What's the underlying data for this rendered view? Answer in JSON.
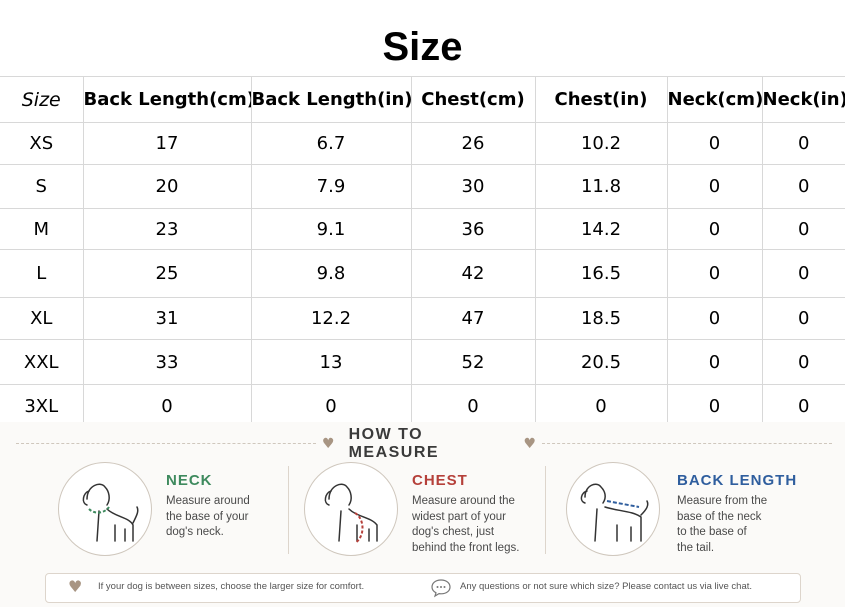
{
  "title": "Size",
  "table": {
    "headers": [
      "Size",
      "Back Length(cm)",
      "Back Length(in)",
      "Chest(cm)",
      "Chest(in)",
      "Neck(cm)",
      "Neck(in)"
    ],
    "rows": [
      [
        "XS",
        "17",
        "6.7",
        "26",
        "10.2",
        "0",
        "0"
      ],
      [
        "S",
        "20",
        "7.9",
        "30",
        "11.8",
        "0",
        "0"
      ],
      [
        "M",
        "23",
        "9.1",
        "36",
        "14.2",
        "0",
        "0"
      ],
      [
        "L",
        "25",
        "9.8",
        "42",
        "16.5",
        "0",
        "0"
      ],
      [
        "XL",
        "31",
        "12.2",
        "47",
        "18.5",
        "0",
        "0"
      ],
      [
        "XXL",
        "33",
        "13",
        "52",
        "20.5",
        "0",
        "0"
      ],
      [
        "3XL",
        "0",
        "0",
        "0",
        "0",
        "0",
        "0"
      ]
    ]
  },
  "how_to_measure": {
    "heading": "HOW TO MEASURE",
    "items": [
      {
        "title": "NECK",
        "color": "#3e8a5e",
        "desc": [
          "Measure around",
          "the base of your",
          "dog's neck."
        ],
        "icon": "dog-neck-icon"
      },
      {
        "title": "CHEST",
        "color": "#b5403a",
        "desc": [
          "Measure around the",
          "widest part of your",
          "dog's chest, just",
          "behind the front legs."
        ],
        "icon": "dog-chest-icon"
      },
      {
        "title": "BACK LENGTH",
        "color": "#2f5e9e",
        "desc": [
          "Measure from the",
          "base of the neck",
          "to the base of",
          "the tail."
        ],
        "icon": "dog-back-icon"
      }
    ],
    "tip_left": "If your dog is between sizes, choose the larger size for comfort.",
    "tip_right": "Any questions or not sure which size? Please contact us via live chat."
  },
  "colors": {
    "heart": "#a89583",
    "divider": "#d8d8d8"
  }
}
